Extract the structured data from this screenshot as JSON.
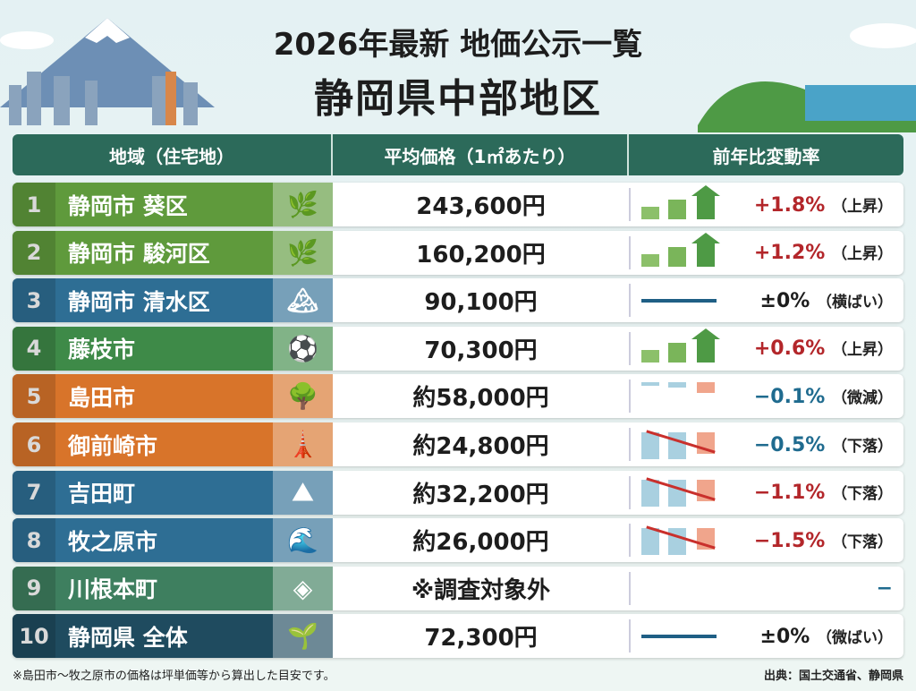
{
  "title_line1": "2026年最新 地価公示一覧",
  "title_line2": "静岡県中部地区",
  "headers": {
    "region": "地域（住宅地）",
    "price": "平均価格（1㎡あたり）",
    "change": "前年比変動率"
  },
  "colors": {
    "up": "#b3262a",
    "down_blue": "#1f6b8f",
    "neutral": "#1d1d1d"
  },
  "rows": [
    {
      "num": "1",
      "name": "静岡市 葵区",
      "icon": "tea-leaf-icon",
      "glyph": "🌿",
      "price": "243,600円",
      "change": "+1.8%",
      "note": "（上昇）",
      "trend": "up",
      "color": "#5f9a3c",
      "pc": "#b3262a"
    },
    {
      "num": "2",
      "name": "静岡市 駿河区",
      "icon": "tea-leaf-icon",
      "glyph": "🌿",
      "price": "160,200円",
      "change": "+1.2%",
      "note": "（上昇）",
      "trend": "up",
      "color": "#5f9a3c",
      "pc": "#b3262a"
    },
    {
      "num": "3",
      "name": "静岡市 清水区",
      "icon": "mountain-sea-icon",
      "glyph": "🏔",
      "price": "90,100円",
      "change": "±0%",
      "note": "（横ばい）",
      "trend": "flat",
      "color": "#2e6e94",
      "pc": "#1d1d1d"
    },
    {
      "num": "4",
      "name": "藤枝市",
      "icon": "soccer-ball-icon",
      "glyph": "⚽",
      "price": "70,300円",
      "change": "+0.6%",
      "note": "（上昇）",
      "trend": "up",
      "color": "#3e8a48",
      "pc": "#b3262a"
    },
    {
      "num": "5",
      "name": "島田市",
      "icon": "tree-icon",
      "glyph": "🌳",
      "price": "約58,000円",
      "change": "−0.1%",
      "note": "（微減）",
      "trend": "slight",
      "color": "#d8742a",
      "pc": "#1f6b8f"
    },
    {
      "num": "6",
      "name": "御前崎市",
      "icon": "lighthouse-icon",
      "glyph": "🗼",
      "price": "約24,800円",
      "change": "−0.5%",
      "note": "（下落）",
      "trend": "down",
      "color": "#d8742a",
      "pc": "#1f6b8f"
    },
    {
      "num": "7",
      "name": "吉田町",
      "icon": "mountain-icon",
      "glyph": "⛰",
      "price": "約32,200円",
      "change": "−1.1%",
      "note": "（下落）",
      "trend": "down",
      "color": "#2e6e94",
      "pc": "#b3262a"
    },
    {
      "num": "8",
      "name": "牧之原市",
      "icon": "wave-icon",
      "glyph": "🌊",
      "price": "約26,000円",
      "change": "−1.5%",
      "note": "（下落）",
      "trend": "down",
      "color": "#2e6e94",
      "pc": "#b3262a"
    },
    {
      "num": "9",
      "name": "川根本町",
      "icon": "diamond-emblem-icon",
      "glyph": "◈",
      "price": "※調査対象外",
      "change": "−",
      "note": "",
      "trend": "none",
      "color": "#3e7f5f",
      "pc": "#1f6b8f"
    },
    {
      "num": "10",
      "name": "静岡県 全体",
      "icon": "tea-field-icon",
      "glyph": "🌱",
      "price": "72,300円",
      "change": "±0%",
      "note": "（微ばい）",
      "trend": "flat",
      "color": "#1f4b5f",
      "pc": "#1d1d1d"
    }
  ],
  "footnote": "※島田市〜牧之原市の価格は坪単価等から算出した目安です。",
  "source": "出典：国土交通省、静岡県"
}
